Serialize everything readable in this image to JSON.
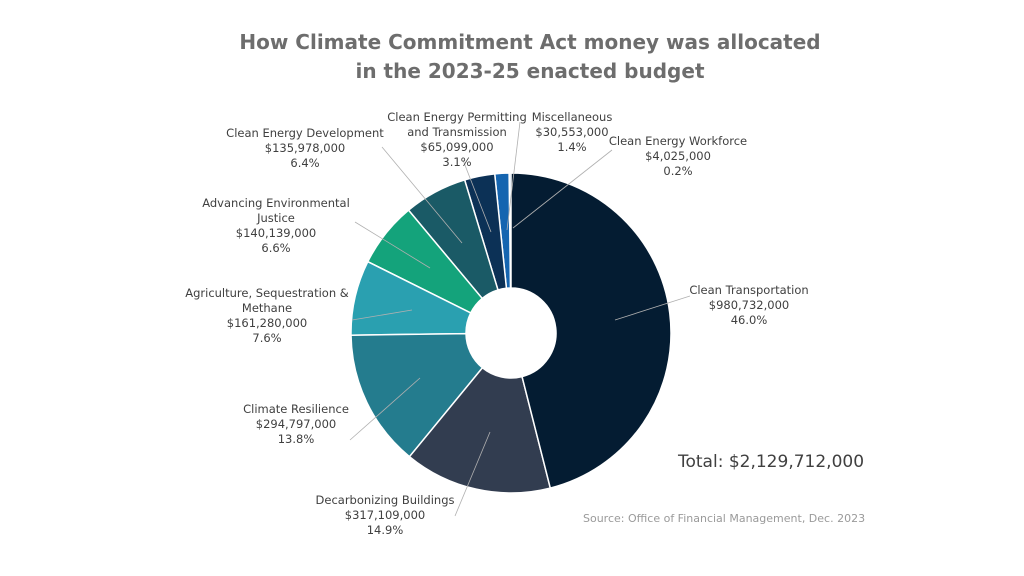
{
  "chart_data": {
    "type": "pie",
    "title": "How Climate Commitment Act money was allocated\nin the 2023-25 enacted budget",
    "categories": [
      "Clean Transportation",
      "Decarbonizing Buildings",
      "Climate Resilience",
      "Agriculture, Sequestration &\nMethane",
      "Advancing Environmental\nJustice",
      "Clean Energy Development",
      "Clean Energy Permitting\nand Transmission",
      "Miscellaneous",
      "Clean Energy Workforce"
    ],
    "values": [
      980732000,
      317109000,
      294797000,
      161280000,
      140139000,
      135978000,
      65099000,
      30553000,
      4025000
    ],
    "value_labels": [
      "$980,732,000",
      "$317,109,000",
      "$294,797,000",
      "$161,280,000",
      "$140,139,000",
      "$135,978,000",
      "$65,099,000",
      "$30,553,000",
      "$4,025,000"
    ],
    "percent_labels": [
      "46.0%",
      "14.9%",
      "13.8%",
      "7.6%",
      "6.6%",
      "6.4%",
      "3.1%",
      "1.4%",
      "0.2%"
    ],
    "colors": [
      "#041c32",
      "#323d50",
      "#247c8e",
      "#2aa0b0",
      "#14a37b",
      "#1a5a66",
      "#0c3156",
      "#1565b0",
      "#5a9bd5"
    ],
    "total_label": "Total: $2,129,712,000",
    "source": "Source: Office of Financial Management, Dec. 2023"
  }
}
